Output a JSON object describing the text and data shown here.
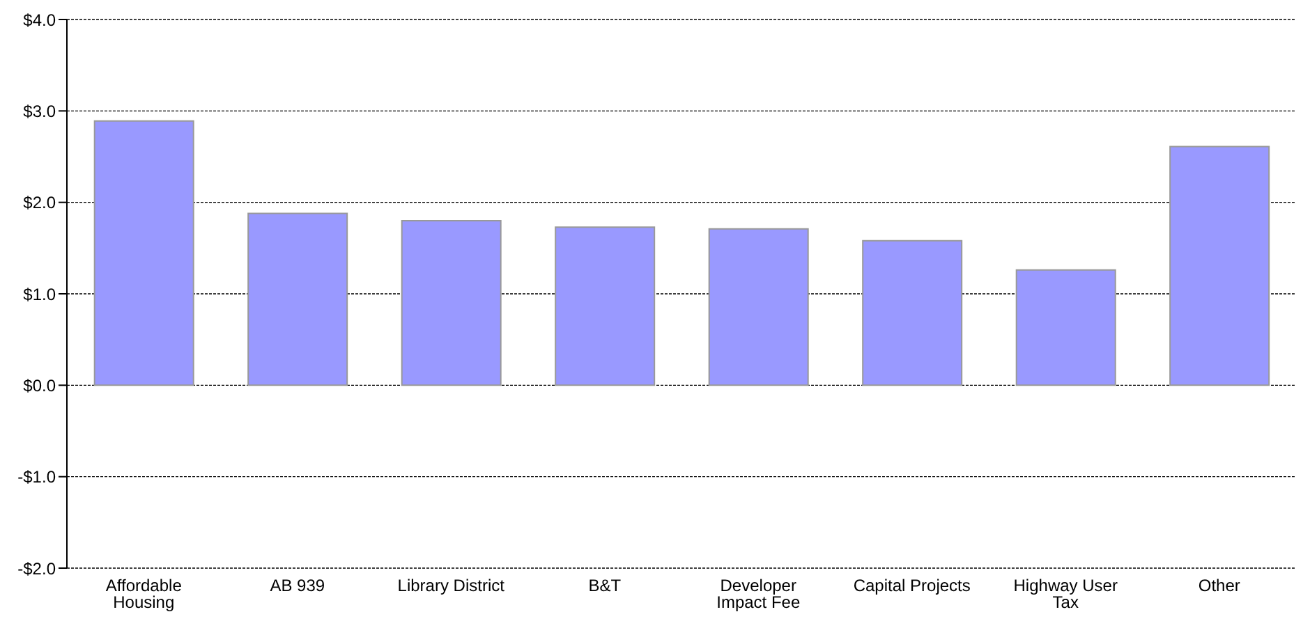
{
  "chart_data": {
    "type": "bar",
    "categories": [
      "Affordable Housing",
      "AB 939",
      "Library District",
      "B&T",
      "Developer Impact Fee",
      "Capital Projects",
      "Highway User Tax",
      "Other"
    ],
    "values": [
      2.89,
      1.88,
      1.8,
      1.73,
      1.71,
      1.58,
      1.26,
      2.61
    ],
    "color": "#9999ff",
    "ylim": [
      -2,
      4
    ],
    "yticks": [
      {
        "value": -2,
        "label": "-$2.0"
      },
      {
        "value": -1,
        "label": "-$1.0"
      },
      {
        "value": 0,
        "label": "$0.0"
      },
      {
        "value": 1,
        "label": "$1.0"
      },
      {
        "value": 2,
        "label": "$2.0"
      },
      {
        "value": 3,
        "label": "$3.0"
      },
      {
        "value": 4,
        "label": "$4.0"
      }
    ],
    "grid": "y",
    "legend": false
  }
}
